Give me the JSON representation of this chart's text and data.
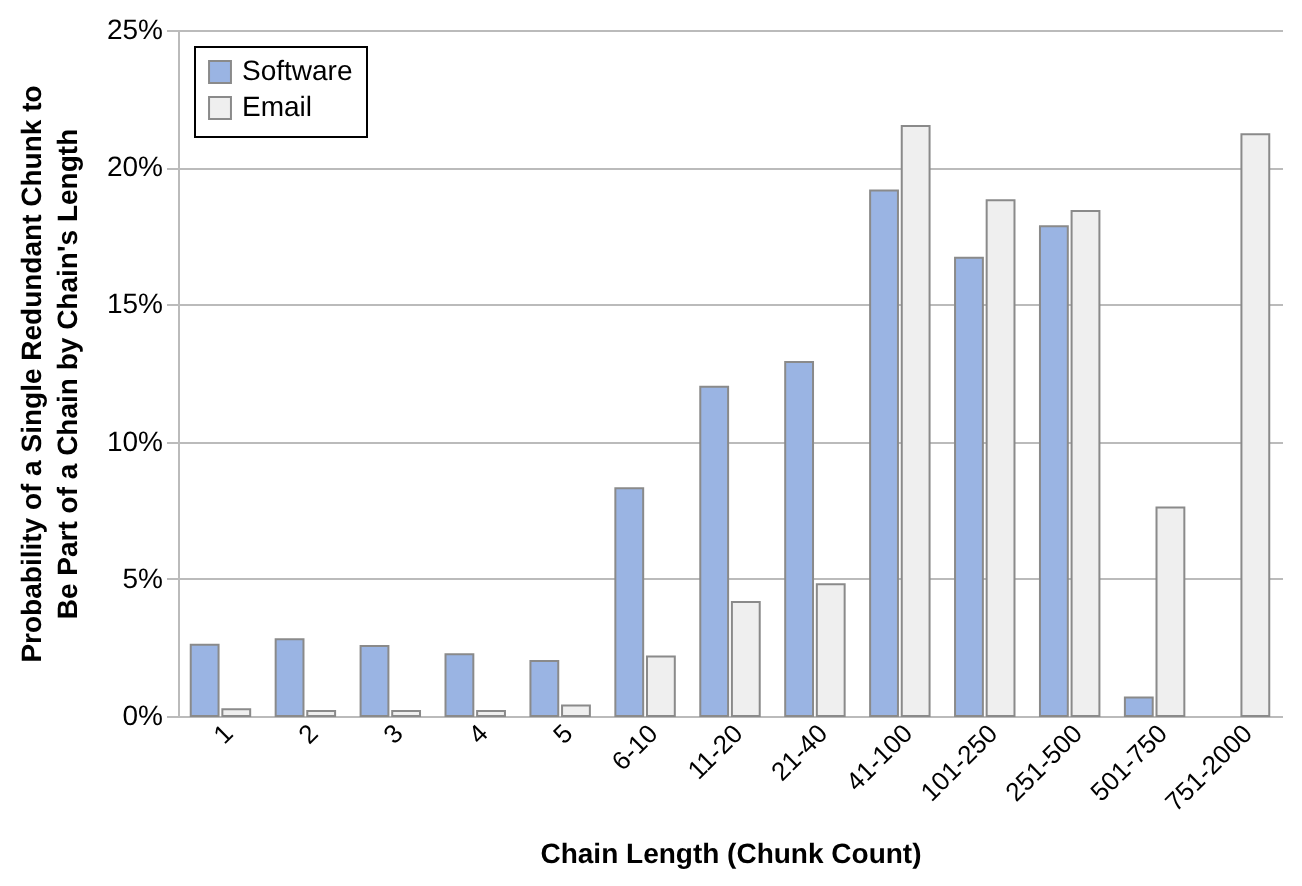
{
  "chart_data": {
    "type": "bar",
    "xlabel": "Chain Length (Chunk Count)",
    "ylabel": "Probability of a Single Redundant Chunk to Be Part of a Chain by Chain's Length",
    "categories": [
      "1",
      "2",
      "3",
      "4",
      "5",
      "6-10",
      "11-20",
      "21-40",
      "41-100",
      "101-250",
      "251-500",
      "501-750",
      "751-2000"
    ],
    "series": [
      {
        "name": "Software",
        "color": "#9ab4e3",
        "values": [
          2.6,
          2.8,
          2.55,
          2.25,
          2.0,
          8.3,
          12.0,
          12.9,
          19.15,
          16.7,
          17.85,
          0.67,
          null
        ]
      },
      {
        "name": "Email",
        "color": "#efefef",
        "values": [
          0.25,
          0.18,
          0.18,
          0.18,
          0.38,
          2.17,
          4.15,
          4.8,
          21.5,
          18.8,
          18.4,
          7.6,
          21.2
        ]
      }
    ],
    "ylim": [
      0,
      25
    ],
    "yticks": [
      {
        "value": 0,
        "label": "0%"
      },
      {
        "value": 5,
        "label": "5%"
      },
      {
        "value": 10,
        "label": "10%"
      },
      {
        "value": 15,
        "label": "15%"
      },
      {
        "value": 20,
        "label": "20%"
      },
      {
        "value": 25,
        "label": "25%"
      }
    ],
    "grid": "y",
    "legend": "top left"
  }
}
